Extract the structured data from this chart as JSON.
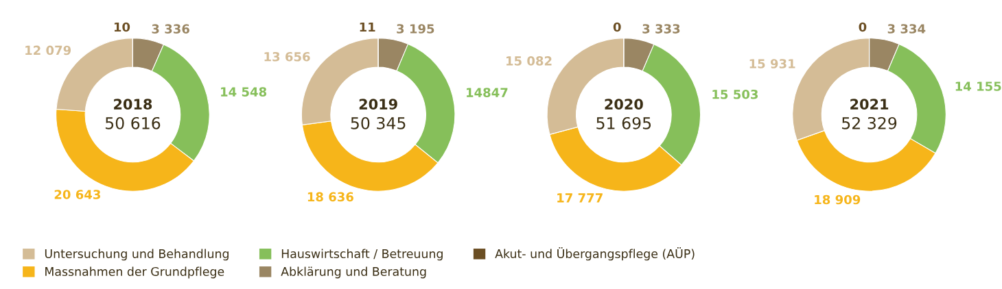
{
  "chart_data": [
    {
      "type": "donut",
      "title": "2018",
      "subtitle": "50 616",
      "legend": "bottom",
      "categories": [
        "Abklärung und Beratung",
        "Hauswirtschaft / Betreuung",
        "Massnahmen der Grundpflege",
        "Untersuchung und Behandlung",
        "Akut- und Übergangspflege (AÜP)"
      ],
      "values": [
        3336,
        14548,
        20643,
        12079,
        10
      ],
      "value_labels": [
        "3 336",
        "14 548",
        "20 643",
        "12 079",
        "10"
      ],
      "colors": [
        "#9a8663",
        "#86bf5a",
        "#f6b51a",
        "#d4bc96",
        "#6b4e23"
      ]
    },
    {
      "type": "donut",
      "title": "2019",
      "subtitle": "50 345",
      "categories": [
        null,
        null,
        null,
        null,
        null
      ],
      "values": [
        3195,
        14847,
        18636,
        13656,
        11
      ],
      "value_labels": [
        "3 195",
        "14847",
        "18 636",
        "13 656",
        "11"
      ],
      "colors": [
        "#9a8663",
        "#86bf5a",
        "#f6b51a",
        "#d4bc96",
        "#6b4e23"
      ]
    },
    {
      "type": "donut",
      "title": "2020",
      "subtitle": "51 695",
      "categories": [
        null,
        null,
        null,
        null,
        null
      ],
      "values": [
        3333,
        15503,
        17777,
        15082,
        0
      ],
      "value_labels": [
        "3 333",
        "15 503",
        "17 777",
        "15 082",
        "0"
      ],
      "colors": [
        "#9a8663",
        "#86bf5a",
        "#f6b51a",
        "#d4bc96",
        "#6b4e23"
      ]
    },
    {
      "type": "donut",
      "title": "2021",
      "subtitle": "52 329",
      "categories": [
        null,
        null,
        null,
        null,
        null
      ],
      "values": [
        3334,
        14155,
        18909,
        15931,
        0
      ],
      "value_labels": [
        "3 334",
        "14 155",
        "18 909",
        "15 931",
        "0"
      ],
      "colors": [
        "#9a8663",
        "#86bf5a",
        "#f6b51a",
        "#d4bc96",
        "#6b4e23"
      ]
    }
  ]
}
